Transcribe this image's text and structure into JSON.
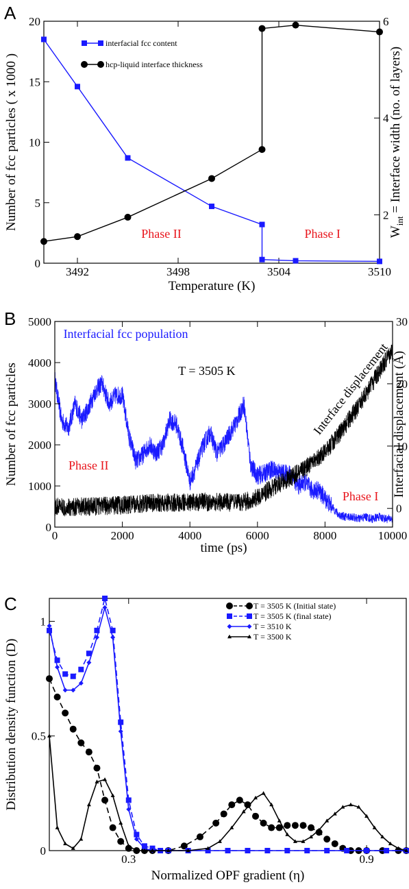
{
  "chart_data": [
    {
      "panel": "A",
      "type": "line",
      "xlabel": "Temperature (K)",
      "ylabel": "Number of fcc particles ( x 1000 )",
      "y2label_main": "W",
      "y2label_sub": "int",
      "y2label_rest": " = Interface width (no. of layers)",
      "xlim": [
        3490,
        3510
      ],
      "ylim": [
        0,
        20
      ],
      "y2lim": [
        1,
        6
      ],
      "xticks": [
        3492,
        3498,
        3504,
        3510
      ],
      "yticks": [
        0,
        5,
        10,
        15,
        20
      ],
      "y2ticks": [
        2,
        4,
        6
      ],
      "annotations": [
        {
          "text": "Phase II",
          "x": 3497,
          "y": 2.1,
          "color": "#e8141b"
        },
        {
          "text": "Phase I",
          "x": 3506.6,
          "y": 2.1,
          "color": "#e8141b"
        }
      ],
      "legend": "upper-left",
      "series": [
        {
          "name": "interfacial fcc content",
          "color": "#1a1aff",
          "marker": "square",
          "axis": "left",
          "x": [
            3490,
            3492,
            3495,
            3500,
            3503,
            3503,
            3505,
            3510
          ],
          "y": [
            18.5,
            14.6,
            8.7,
            4.7,
            3.2,
            0.3,
            0.2,
            0.15
          ]
        },
        {
          "name": "hcp-liquid interface thickness",
          "color": "#000000",
          "marker": "circle",
          "axis": "right",
          "x": [
            3490,
            3492,
            3495,
            3500,
            3503,
            3503,
            3505,
            3510
          ],
          "y": [
            1.45,
            1.55,
            1.95,
            2.75,
            3.35,
            5.85,
            5.92,
            5.78
          ]
        }
      ]
    },
    {
      "panel": "B",
      "type": "line",
      "xlabel": "time (ps)",
      "ylabel": "Number of fcc particles",
      "y2label": "Interfacial displacement (Å)",
      "xlim": [
        0,
        10000
      ],
      "ylim": [
        0,
        5000
      ],
      "y2lim": [
        -3,
        30
      ],
      "xticks": [
        0,
        2000,
        4000,
        6000,
        8000,
        10000
      ],
      "yticks": [
        0,
        1000,
        2000,
        3000,
        4000,
        5000
      ],
      "y2ticks": [
        0,
        10,
        20,
        30
      ],
      "annotations": [
        {
          "text": "Interfacial fcc population",
          "x": 2100,
          "y": 4600,
          "color": "#1a1aff"
        },
        {
          "text": "T = 3505 K",
          "x": 4500,
          "y": 3700,
          "color": "#000000"
        },
        {
          "text": "Phase II",
          "x": 1000,
          "y": 1400,
          "color": "#e8141b"
        },
        {
          "text": "Phase I",
          "x": 9050,
          "y": 650,
          "color": "#e8141b"
        },
        {
          "text": "Interface displacement",
          "x": 8850,
          "y": 3300,
          "color": "#000000",
          "rotate": -52
        }
      ],
      "series": [
        {
          "name": "fcc population",
          "color": "#1a1aff",
          "axis": "left",
          "noise": 230,
          "x": [
            0,
            200,
            400,
            600,
            800,
            1000,
            1200,
            1400,
            1600,
            1800,
            2000,
            2200,
            2400,
            2600,
            2800,
            3000,
            3200,
            3400,
            3600,
            3800,
            4000,
            4200,
            4400,
            4600,
            4800,
            5000,
            5200,
            5400,
            5600,
            5800,
            6000,
            6200,
            6400,
            6600,
            6800,
            7000,
            7200,
            7400,
            7600,
            7800,
            8000,
            8200,
            8400,
            8600,
            8800,
            9000,
            9200,
            9400,
            9600,
            9800,
            10000
          ],
          "y": [
            3600,
            2600,
            2400,
            3000,
            2600,
            2900,
            3300,
            3500,
            3000,
            3200,
            3200,
            2200,
            1600,
            1750,
            2000,
            1800,
            2000,
            2600,
            2500,
            1900,
            1100,
            1500,
            2000,
            2300,
            1800,
            2000,
            2300,
            2600,
            3000,
            1500,
            1250,
            1300,
            1400,
            1350,
            1300,
            1300,
            1000,
            1100,
            900,
            900,
            700,
            500,
            300,
            250,
            250,
            200,
            250,
            200,
            250,
            200,
            200
          ]
        },
        {
          "name": "interface displacement",
          "color": "#000000",
          "axis": "right",
          "noise": 1.5,
          "x": [
            0,
            1000,
            2000,
            3000,
            4000,
            5000,
            5500,
            6000,
            6500,
            7000,
            7500,
            8000,
            8500,
            9000,
            9500,
            10000
          ],
          "y": [
            0.2,
            0.3,
            0.5,
            0.9,
            1.0,
            1.0,
            0.8,
            1.8,
            3.5,
            5.0,
            6.8,
            9.0,
            12.5,
            16.5,
            21.0,
            25.5
          ]
        }
      ]
    },
    {
      "panel": "C",
      "type": "line",
      "xlabel": "Normalized OPF gradient (",
      "xlabel_symbol": "η",
      "xlabel_tail": ")",
      "ylabel": "Distribution density function (D)",
      "xlim": [
        0.1,
        1.0
      ],
      "ylim": [
        0,
        1.1
      ],
      "xticks": [
        0.3,
        0.9
      ],
      "xtick_labels": [
        "0.3",
        "0.9"
      ],
      "yticks": [
        0,
        0.5,
        1
      ],
      "ytick_labels": [
        "0",
        "0.5",
        "1"
      ],
      "legend": "upper-right",
      "series": [
        {
          "name": "T = 3505 K (Initial state)",
          "color": "#000000",
          "dash": "dashed",
          "marker": "circle",
          "x": [
            0.1,
            0.12,
            0.14,
            0.16,
            0.18,
            0.2,
            0.22,
            0.24,
            0.26,
            0.28,
            0.3,
            0.32,
            0.34,
            0.36,
            0.4,
            0.44,
            0.48,
            0.52,
            0.54,
            0.56,
            0.58,
            0.6,
            0.62,
            0.64,
            0.66,
            0.68,
            0.7,
            0.72,
            0.74,
            0.76,
            0.78,
            0.8,
            0.82,
            0.84,
            0.86,
            0.88,
            0.9,
            0.94,
            0.98,
            1.0
          ],
          "y": [
            0.75,
            0.67,
            0.6,
            0.53,
            0.47,
            0.43,
            0.36,
            0.22,
            0.1,
            0.04,
            0.01,
            0.0,
            0.0,
            0.0,
            0.0,
            0.02,
            0.06,
            0.12,
            0.16,
            0.2,
            0.22,
            0.2,
            0.15,
            0.12,
            0.1,
            0.1,
            0.11,
            0.11,
            0.11,
            0.1,
            0.08,
            0.05,
            0.03,
            0.01,
            0.0,
            0.0,
            0.0,
            0.0,
            0.0,
            0.0
          ]
        },
        {
          "name": "T = 3505 K (final state)",
          "color": "#1a1aff",
          "dash": "dashed",
          "marker": "square",
          "x": [
            0.1,
            0.12,
            0.14,
            0.16,
            0.18,
            0.2,
            0.22,
            0.24,
            0.26,
            0.28,
            0.3,
            0.32,
            0.34,
            0.36,
            0.38,
            0.4,
            0.45,
            0.5,
            0.55,
            0.6,
            0.65,
            0.7,
            0.75,
            0.8,
            0.85,
            0.9,
            0.95,
            1.0
          ],
          "y": [
            0.96,
            0.83,
            0.77,
            0.76,
            0.79,
            0.86,
            0.96,
            1.1,
            0.96,
            0.56,
            0.22,
            0.07,
            0.02,
            0.01,
            0.0,
            0.0,
            0.0,
            0.0,
            0.0,
            0.0,
            0.0,
            0.0,
            0.0,
            0.0,
            0.0,
            0.0,
            0.0,
            0.0
          ]
        },
        {
          "name": "T = 3510 K",
          "color": "#1a1aff",
          "dash": "solid",
          "marker": "diamond",
          "x": [
            0.1,
            0.12,
            0.14,
            0.16,
            0.18,
            0.2,
            0.22,
            0.24,
            0.26,
            0.28,
            0.3,
            0.32,
            0.34,
            0.36,
            0.38,
            0.4,
            0.45,
            0.5,
            0.55,
            0.6,
            0.65,
            0.7,
            0.75,
            0.8,
            0.85,
            0.9,
            0.95,
            1.0
          ],
          "y": [
            0.98,
            0.8,
            0.7,
            0.7,
            0.73,
            0.82,
            0.93,
            1.06,
            0.93,
            0.52,
            0.18,
            0.05,
            0.01,
            0.0,
            0.0,
            0.0,
            0.0,
            0.0,
            0.0,
            0.0,
            0.0,
            0.0,
            0.0,
            0.0,
            0.0,
            0.0,
            0.0,
            0.0
          ]
        },
        {
          "name": "T = 3500 K",
          "color": "#000000",
          "dash": "solid",
          "marker": "triangle",
          "x": [
            0.1,
            0.12,
            0.14,
            0.16,
            0.18,
            0.2,
            0.22,
            0.24,
            0.26,
            0.28,
            0.3,
            0.32,
            0.34,
            0.36,
            0.4,
            0.45,
            0.5,
            0.53,
            0.56,
            0.59,
            0.62,
            0.64,
            0.66,
            0.68,
            0.7,
            0.72,
            0.74,
            0.76,
            0.78,
            0.8,
            0.82,
            0.84,
            0.86,
            0.88,
            0.9,
            0.92,
            0.94,
            0.96,
            0.98,
            1.0
          ],
          "y": [
            0.5,
            0.1,
            0.03,
            0.01,
            0.05,
            0.2,
            0.3,
            0.31,
            0.24,
            0.12,
            0.02,
            0.0,
            0.0,
            0.0,
            0.0,
            0.0,
            0.01,
            0.04,
            0.1,
            0.17,
            0.23,
            0.25,
            0.2,
            0.13,
            0.07,
            0.04,
            0.04,
            0.06,
            0.09,
            0.13,
            0.16,
            0.19,
            0.2,
            0.19,
            0.15,
            0.1,
            0.06,
            0.03,
            0.01,
            0.0
          ]
        }
      ]
    }
  ]
}
